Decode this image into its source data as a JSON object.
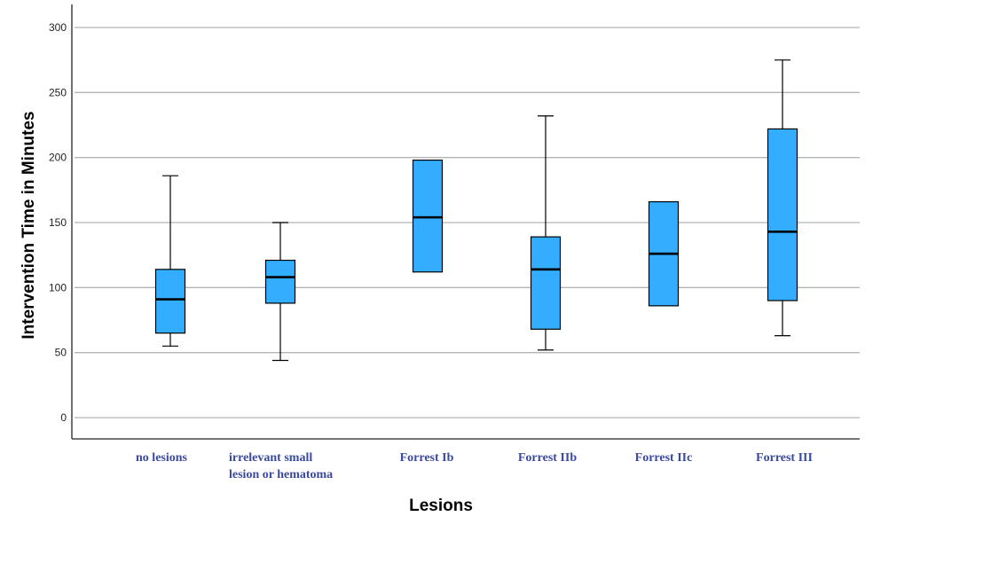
{
  "chart_data": {
    "type": "boxplot",
    "xlabel": "Lesions",
    "ylabel": "Intervention Time in Minutes",
    "ylim": [
      -16,
      318
    ],
    "yticks": [
      0,
      50,
      100,
      150,
      200,
      250,
      300
    ],
    "grid": true,
    "box_color": "#33adff",
    "label_color": "#3b4aa0",
    "categories": [
      {
        "label_lines": [
          "no lesions"
        ],
        "whisker_low": 55,
        "q1": 65,
        "median": 91,
        "q3": 114,
        "whisker_high": 186
      },
      {
        "label_lines": [
          "irrelevant small",
          "lesion or hematoma"
        ],
        "whisker_low": 44,
        "q1": 88,
        "median": 108,
        "q3": 121,
        "whisker_high": 150
      },
      {
        "label_lines": [
          "Forrest Ib"
        ],
        "whisker_low": null,
        "q1": 112,
        "median": 154,
        "q3": 198,
        "whisker_high": null
      },
      {
        "label_lines": [
          "Forrest IIb"
        ],
        "whisker_low": 52,
        "q1": 68,
        "median": 114,
        "q3": 139,
        "whisker_high": 232
      },
      {
        "label_lines": [
          "Forrest IIc"
        ],
        "whisker_low": null,
        "q1": 86,
        "median": 126,
        "q3": 166,
        "whisker_high": null
      },
      {
        "label_lines": [
          "Forrest III"
        ],
        "whisker_low": 63,
        "q1": 90,
        "median": 143,
        "q3": 222,
        "whisker_high": 275
      }
    ]
  }
}
